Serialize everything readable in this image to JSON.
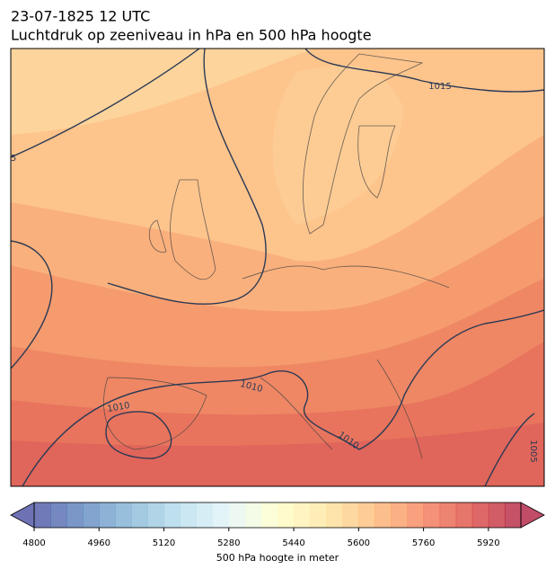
{
  "header": {
    "datetime": "23-07-1825 12 UTC",
    "title": "Luchtdruk op zeeniveau in hPa en 500 hPa hoogte"
  },
  "isobar_labels": [
    1015,
    1010,
    1010,
    1010,
    1005,
    5
  ],
  "colorbar": {
    "label": "500 hPa hoogte in meter",
    "range": [
      4800,
      6000
    ],
    "step": 40,
    "ticks": [
      4800,
      4960,
      5120,
      5280,
      5440,
      5600,
      5760,
      5920
    ]
  }
}
